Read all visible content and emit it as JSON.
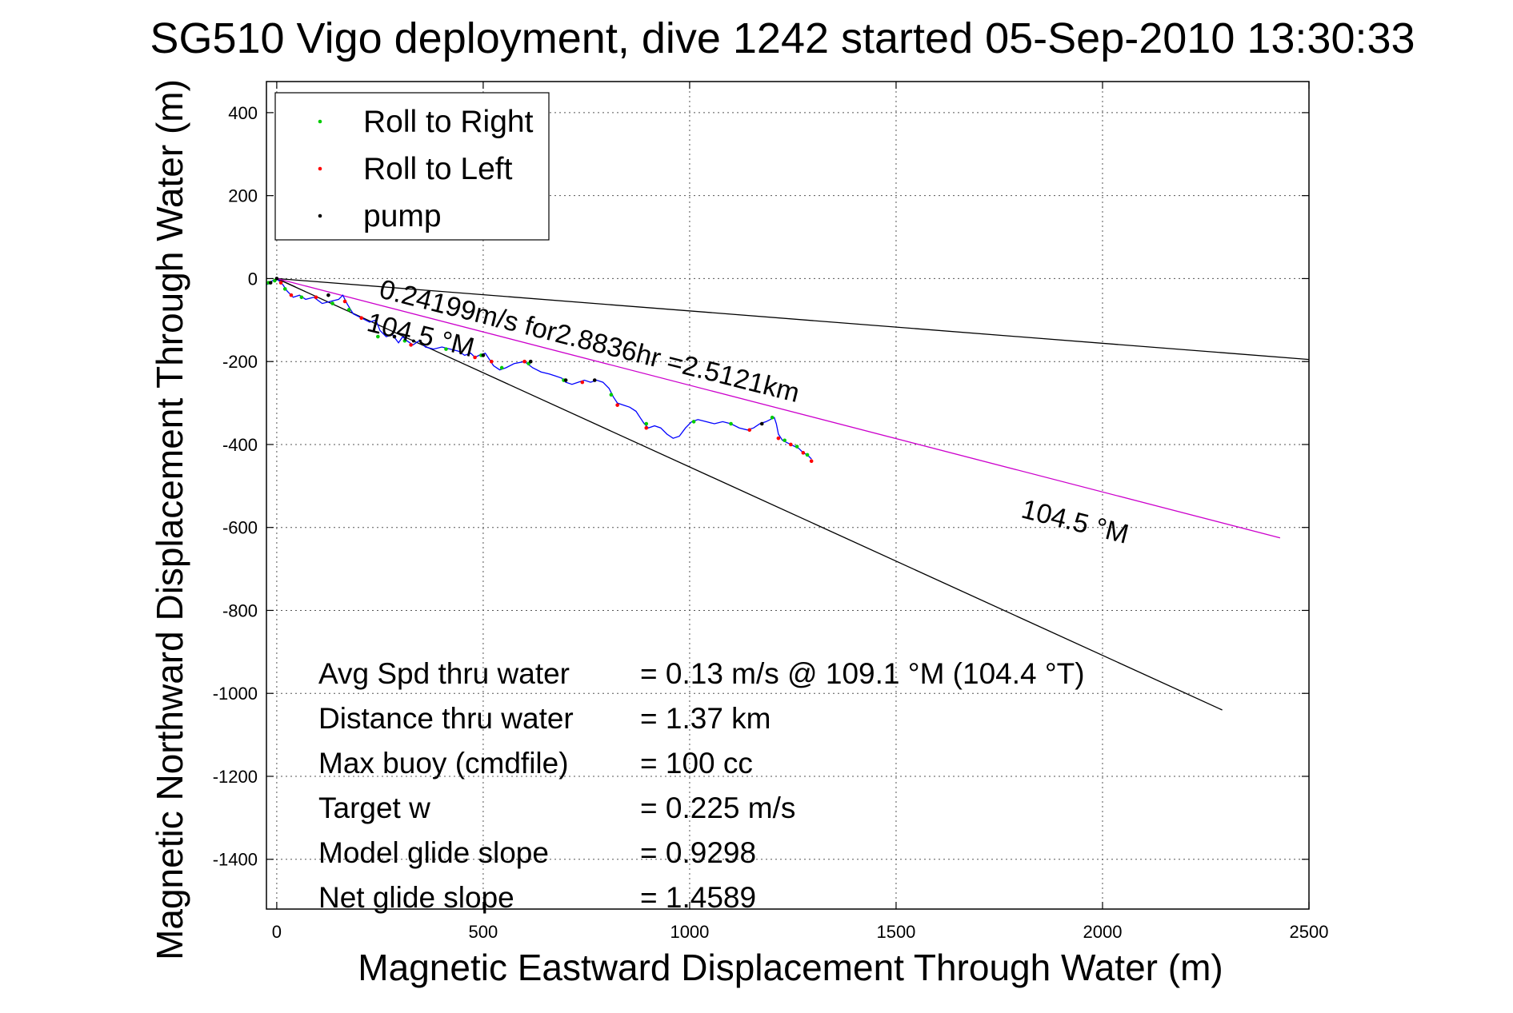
{
  "chart_data": {
    "type": "scatter",
    "title": "SG510 Vigo deployment, dive 1242 started 05-Sep-2010 13:30:33",
    "xlabel": "Magnetic Eastward Displacement Through Water (m)",
    "ylabel": "Magnetic Northward Displacement Through Water (m)",
    "xlim": [
      -25,
      2500
    ],
    "ylim": [
      -1520,
      475
    ],
    "xticks": [
      0,
      500,
      1000,
      1500,
      2000,
      2500
    ],
    "yticks": [
      400,
      200,
      0,
      -200,
      -400,
      -600,
      -800,
      -1000,
      -1200,
      -1400
    ],
    "grid": true,
    "legend_position": "top-left",
    "legend": [
      {
        "label": "Roll to Right",
        "color": "#00cc00"
      },
      {
        "label": "Roll to Left",
        "color": "#ff0000"
      },
      {
        "label": "pump",
        "color": "#000000"
      }
    ],
    "track": {
      "color": "#0000ff",
      "points": [
        [
          -25,
          -15
        ],
        [
          -10,
          -5
        ],
        [
          0,
          0
        ],
        [
          5,
          -5
        ],
        [
          15,
          -15
        ],
        [
          25,
          -30
        ],
        [
          40,
          -45
        ],
        [
          55,
          -40
        ],
        [
          70,
          -50
        ],
        [
          90,
          -45
        ],
        [
          110,
          -60
        ],
        [
          130,
          -55
        ],
        [
          150,
          -50
        ],
        [
          160,
          -40
        ],
        [
          170,
          -60
        ],
        [
          185,
          -85
        ],
        [
          205,
          -95
        ],
        [
          225,
          -105
        ],
        [
          240,
          -100
        ],
        [
          250,
          -125
        ],
        [
          265,
          -140
        ],
        [
          280,
          -135
        ],
        [
          295,
          -155
        ],
        [
          305,
          -140
        ],
        [
          315,
          -150
        ],
        [
          330,
          -160
        ],
        [
          345,
          -150
        ],
        [
          360,
          -165
        ],
        [
          380,
          -170
        ],
        [
          400,
          -165
        ],
        [
          420,
          -170
        ],
        [
          440,
          -175
        ],
        [
          455,
          -185
        ],
        [
          470,
          -180
        ],
        [
          480,
          -190
        ],
        [
          490,
          -185
        ],
        [
          505,
          -180
        ],
        [
          515,
          -195
        ],
        [
          525,
          -210
        ],
        [
          540,
          -220
        ],
        [
          555,
          -215
        ],
        [
          575,
          -205
        ],
        [
          600,
          -200
        ],
        [
          620,
          -215
        ],
        [
          640,
          -225
        ],
        [
          660,
          -230
        ],
        [
          675,
          -235
        ],
        [
          690,
          -240
        ],
        [
          700,
          -250
        ],
        [
          715,
          -255
        ],
        [
          730,
          -250
        ],
        [
          745,
          -245
        ],
        [
          760,
          -250
        ],
        [
          775,
          -245
        ],
        [
          790,
          -250
        ],
        [
          805,
          -265
        ],
        [
          815,
          -285
        ],
        [
          825,
          -300
        ],
        [
          840,
          -305
        ],
        [
          855,
          -310
        ],
        [
          870,
          -320
        ],
        [
          880,
          -335
        ],
        [
          890,
          -350
        ],
        [
          900,
          -360
        ],
        [
          915,
          -355
        ],
        [
          930,
          -360
        ],
        [
          945,
          -375
        ],
        [
          960,
          -385
        ],
        [
          975,
          -380
        ],
        [
          990,
          -360
        ],
        [
          1005,
          -345
        ],
        [
          1020,
          -340
        ],
        [
          1040,
          -345
        ],
        [
          1060,
          -350
        ],
        [
          1080,
          -345
        ],
        [
          1100,
          -350
        ],
        [
          1120,
          -360
        ],
        [
          1140,
          -365
        ],
        [
          1155,
          -360
        ],
        [
          1170,
          -350
        ],
        [
          1185,
          -345
        ],
        [
          1195,
          -340
        ],
        [
          1205,
          -335
        ],
        [
          1210,
          -350
        ],
        [
          1215,
          -375
        ],
        [
          1225,
          -390
        ],
        [
          1235,
          -395
        ],
        [
          1245,
          -400
        ],
        [
          1255,
          -405
        ],
        [
          1265,
          -410
        ],
        [
          1275,
          -420
        ],
        [
          1285,
          -425
        ],
        [
          1295,
          -435
        ]
      ]
    },
    "right_roll_points": [
      [
        -20,
        -10
      ],
      [
        -5,
        -5
      ],
      [
        20,
        -25
      ],
      [
        60,
        -45
      ],
      [
        135,
        -60
      ],
      [
        175,
        -75
      ],
      [
        245,
        -140
      ],
      [
        310,
        -150
      ],
      [
        410,
        -170
      ],
      [
        495,
        -185
      ],
      [
        545,
        -215
      ],
      [
        610,
        -205
      ],
      [
        695,
        -245
      ],
      [
        810,
        -280
      ],
      [
        895,
        -350
      ],
      [
        1010,
        -345
      ],
      [
        1100,
        -350
      ],
      [
        1200,
        -335
      ],
      [
        1230,
        -390
      ],
      [
        1260,
        -405
      ],
      [
        1285,
        -425
      ]
    ],
    "left_roll_points": [
      [
        10,
        -10
      ],
      [
        35,
        -40
      ],
      [
        95,
        -45
      ],
      [
        165,
        -55
      ],
      [
        205,
        -95
      ],
      [
        325,
        -160
      ],
      [
        480,
        -190
      ],
      [
        520,
        -200
      ],
      [
        600,
        -200
      ],
      [
        740,
        -250
      ],
      [
        825,
        -305
      ],
      [
        895,
        -360
      ],
      [
        1145,
        -365
      ],
      [
        1215,
        -385
      ],
      [
        1245,
        -400
      ],
      [
        1275,
        -420
      ],
      [
        1295,
        -440
      ]
    ],
    "pump_points": [
      [
        0,
        0
      ],
      [
        -15,
        -10
      ],
      [
        125,
        -40
      ],
      [
        285,
        -140
      ],
      [
        500,
        -185
      ],
      [
        615,
        -200
      ],
      [
        700,
        -245
      ],
      [
        770,
        -245
      ],
      [
        1175,
        -350
      ]
    ],
    "lines": [
      {
        "color": "#000000",
        "points": [
          [
            0,
            0
          ],
          [
            2500,
            -195
          ]
        ]
      },
      {
        "color": "#000000",
        "points": [
          [
            0,
            0
          ],
          [
            2290,
            -1040
          ]
        ]
      },
      {
        "color": "#000000",
        "points": [
          [
            0,
            0
          ],
          [
            45,
            -20
          ]
        ]
      },
      {
        "color": "#cc00cc",
        "points": [
          [
            0,
            0
          ],
          [
            2430,
            -625
          ]
        ]
      }
    ],
    "annotations": [
      {
        "text": "0.24199m/s for2.8836hr =2.5121km",
        "x": 245,
        "y": -45,
        "angle": 14.1
      },
      {
        "text": "104.5 °M",
        "x": 215,
        "y": -125,
        "angle": 14.1
      },
      {
        "text": "104.5 °M",
        "x": 1800,
        "y": -575,
        "angle": 14.1
      }
    ],
    "stats": [
      {
        "label": "Avg Spd thru water",
        "value": "=  0.13 m/s @ 109.1 °M (104.4 °T)"
      },
      {
        "label": "Distance thru water",
        "value": "=  1.37 km"
      },
      {
        "label": "Max buoy (cmdfile)",
        "value": "= 100 cc"
      },
      {
        "label": "Target w",
        "value": "= 0.225 m/s"
      },
      {
        "label": "Model glide slope",
        "value": "= 0.9298"
      },
      {
        "label": "Net glide slope",
        "value": "= 1.4589"
      }
    ]
  }
}
